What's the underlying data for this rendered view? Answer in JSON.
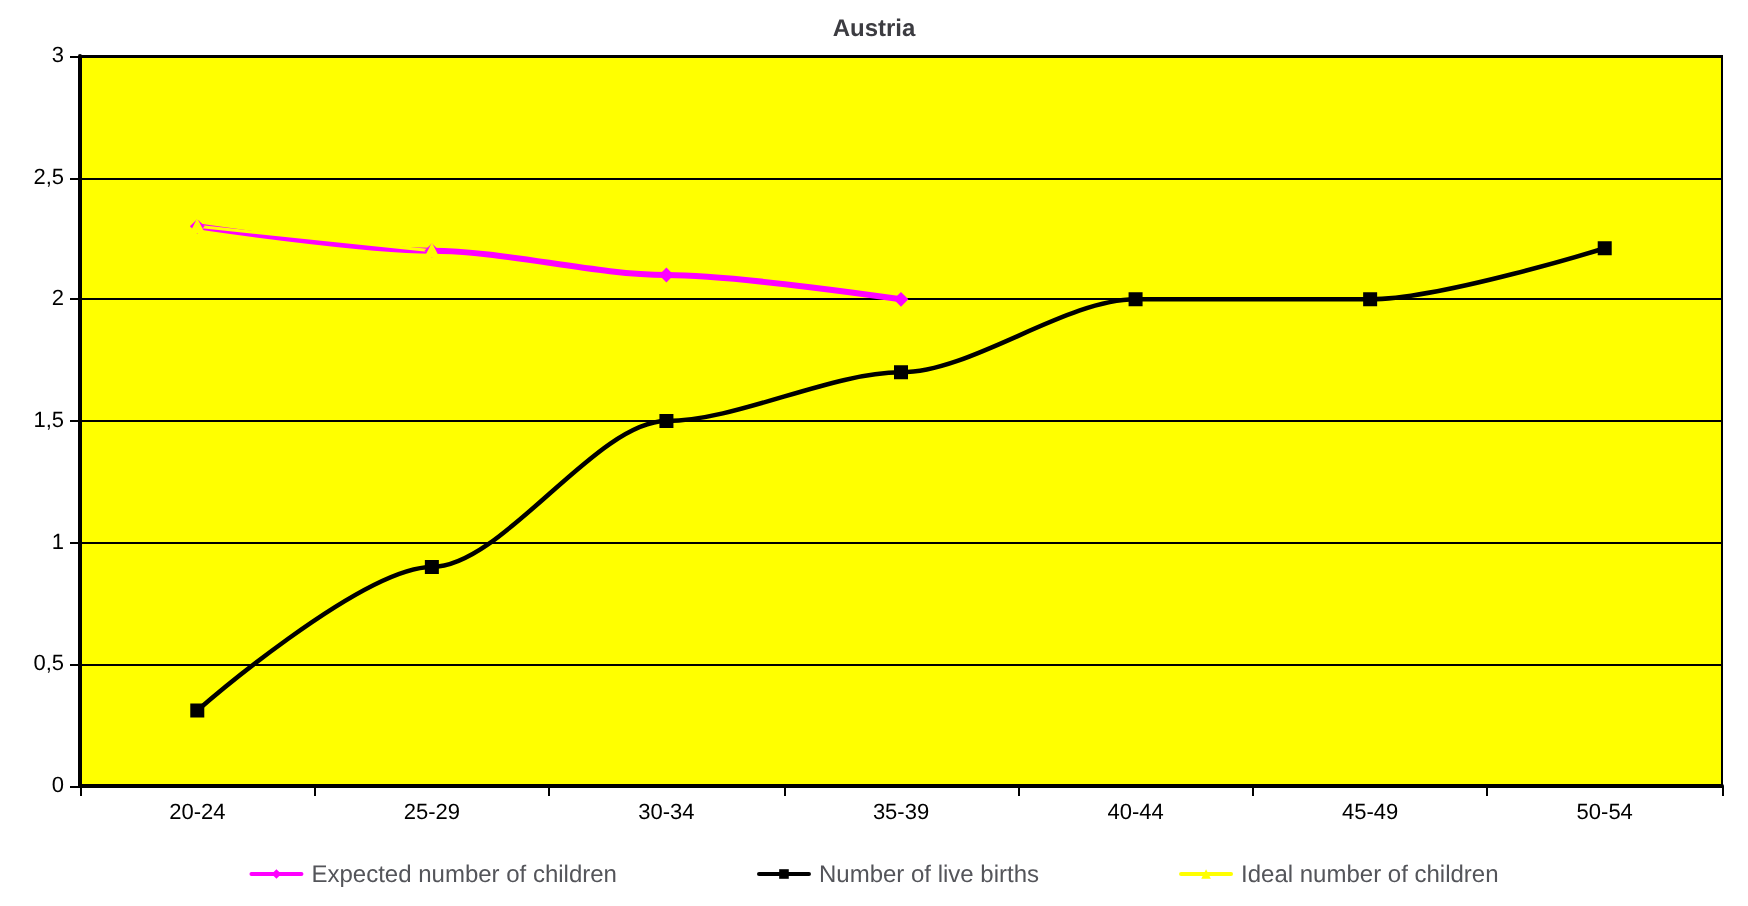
{
  "chart_data": {
    "type": "line",
    "title": "Austria",
    "categories": [
      "20-24",
      "25-29",
      "30-34",
      "35-39",
      "40-44",
      "45-49",
      "50-54"
    ],
    "series": [
      {
        "name": "Expected number of children",
        "color": "#ff00ff",
        "marker": "diamond",
        "values": [
          2.3,
          2.2,
          2.1,
          2.0,
          null,
          null,
          null
        ]
      },
      {
        "name": "Number of live births",
        "color": "#000000",
        "marker": "square",
        "values": [
          0.31,
          0.9,
          1.5,
          1.7,
          2.0,
          2.0,
          2.21
        ]
      },
      {
        "name": "Ideal number of children",
        "color": "#ffff00",
        "marker": "triangle",
        "values": [
          2.3,
          2.2,
          null,
          null,
          null,
          null,
          null
        ]
      }
    ],
    "ylim": [
      0,
      3
    ],
    "yticks": [
      0,
      {
        "value": 0.5,
        "label": "0,5"
      },
      1,
      {
        "value": 1.5,
        "label": "1,5"
      },
      2,
      {
        "value": 2.5,
        "label": "2,5"
      },
      3
    ],
    "grid": "y",
    "legend": "bottom"
  }
}
